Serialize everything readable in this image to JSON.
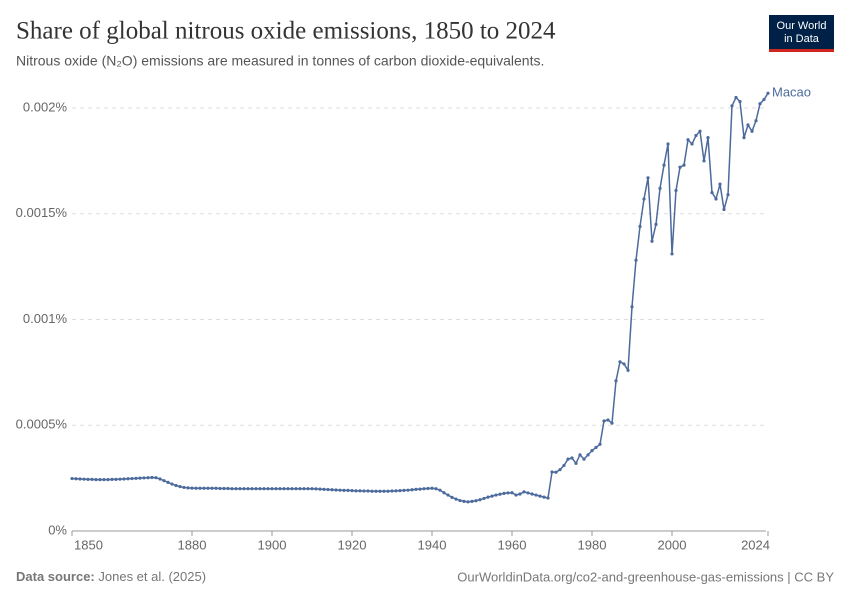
{
  "chart_data": {
    "type": "line",
    "title": "Share of global nitrous oxide emissions, 1850 to 2024",
    "subtitle": "Nitrous oxide (N₂O) emissions are measured in tonnes of carbon dioxide-equivalents.",
    "source_label": "Data source:",
    "source": "Jones et al. (2025)",
    "footer_right": "OurWorldinData.org/co2-and-greenhouse-gas-emissions | CC BY",
    "logo": [
      "Our World",
      "in Data"
    ],
    "x": [
      1850,
      1851,
      1852,
      1853,
      1854,
      1855,
      1856,
      1857,
      1858,
      1859,
      1860,
      1861,
      1862,
      1863,
      1864,
      1865,
      1866,
      1867,
      1868,
      1869,
      1870,
      1871,
      1872,
      1873,
      1874,
      1875,
      1876,
      1877,
      1878,
      1879,
      1880,
      1881,
      1882,
      1883,
      1884,
      1885,
      1886,
      1887,
      1888,
      1889,
      1890,
      1891,
      1892,
      1893,
      1894,
      1895,
      1896,
      1897,
      1898,
      1899,
      1900,
      1901,
      1902,
      1903,
      1904,
      1905,
      1906,
      1907,
      1908,
      1909,
      1910,
      1911,
      1912,
      1913,
      1914,
      1915,
      1916,
      1917,
      1918,
      1919,
      1920,
      1921,
      1922,
      1923,
      1924,
      1925,
      1926,
      1927,
      1928,
      1929,
      1930,
      1931,
      1932,
      1933,
      1934,
      1935,
      1936,
      1937,
      1938,
      1939,
      1940,
      1941,
      1942,
      1943,
      1944,
      1945,
      1946,
      1947,
      1948,
      1949,
      1950,
      1951,
      1952,
      1953,
      1954,
      1955,
      1956,
      1957,
      1958,
      1959,
      1960,
      1961,
      1962,
      1963,
      1964,
      1965,
      1966,
      1967,
      1968,
      1969,
      1970,
      1971,
      1972,
      1973,
      1974,
      1975,
      1976,
      1977,
      1978,
      1979,
      1980,
      1981,
      1982,
      1983,
      1984,
      1985,
      1986,
      1987,
      1988,
      1989,
      1990,
      1991,
      1992,
      1993,
      1994,
      1995,
      1996,
      1997,
      1998,
      1999,
      2000,
      2001,
      2002,
      2003,
      2004,
      2005,
      2006,
      2007,
      2008,
      2009,
      2010,
      2011,
      2012,
      2013,
      2014,
      2015,
      2016,
      2017,
      2018,
      2019,
      2020,
      2021,
      2022,
      2023,
      2024
    ],
    "series": [
      {
        "name": "Macao",
        "color": "#4c6a9c",
        "values": [
          0.000248,
          0.000247,
          0.000246,
          0.000245,
          0.000244,
          0.000244,
          0.000243,
          0.000243,
          0.000243,
          0.000243,
          0.000244,
          0.000244,
          0.000245,
          0.000246,
          0.000247,
          0.000248,
          0.000249,
          0.00025,
          0.000251,
          0.000252,
          0.000253,
          0.000252,
          0.000246,
          0.000238,
          0.00023,
          0.000222,
          0.000215,
          0.00021,
          0.000206,
          0.000204,
          0.000203,
          0.000202,
          0.000202,
          0.000202,
          0.000202,
          0.000202,
          0.000202,
          0.000201,
          0.000201,
          0.000201,
          0.0002,
          0.0002,
          0.0002,
          0.0002,
          0.0002,
          0.0002,
          0.0002,
          0.0002,
          0.0002,
          0.0002,
          0.0002,
          0.0002,
          0.0002,
          0.0002,
          0.0002,
          0.0002,
          0.0002,
          0.0002,
          0.0002,
          0.0002,
          0.0002,
          0.000199,
          0.000198,
          0.000197,
          0.000196,
          0.000195,
          0.000194,
          0.000193,
          0.000192,
          0.000192,
          0.000191,
          0.00019,
          0.00019,
          0.000189,
          0.000189,
          0.000188,
          0.000188,
          0.000188,
          0.000188,
          0.000188,
          0.000189,
          0.00019,
          0.000191,
          0.000192,
          0.000193,
          0.000195,
          0.000197,
          0.000198,
          0.0002,
          0.000201,
          0.000202,
          0.0002,
          0.000193,
          0.000181,
          0.00017,
          0.000159,
          0.000151,
          0.000144,
          0.00014,
          0.000138,
          0.00014,
          0.000143,
          0.000148,
          0.000154,
          0.00016,
          0.000165,
          0.00017,
          0.000174,
          0.000178,
          0.00018,
          0.000181,
          0.00017,
          0.000175,
          0.000185,
          0.00018,
          0.000175,
          0.00017,
          0.000165,
          0.00016,
          0.000156,
          0.000279,
          0.000278,
          0.00029,
          0.00031,
          0.00034,
          0.000345,
          0.00032,
          0.00036,
          0.00034,
          0.00036,
          0.00038,
          0.000395,
          0.00041,
          0.00052,
          0.000525,
          0.00051,
          0.00071,
          0.0008,
          0.00079,
          0.00076,
          0.00106,
          0.00128,
          0.00144,
          0.00157,
          0.00167,
          0.00137,
          0.00145,
          0.00162,
          0.00173,
          0.00183,
          0.00131,
          0.00161,
          0.00172,
          0.00173,
          0.00185,
          0.00183,
          0.00187,
          0.00189,
          0.00175,
          0.00186,
          0.0016,
          0.00157,
          0.00164,
          0.00152,
          0.00159,
          0.00201,
          0.00205,
          0.00203,
          0.00186,
          0.00192,
          0.00189,
          0.00194,
          0.00202,
          0.00204,
          0.00207
        ]
      }
    ],
    "xlim": [
      1850,
      2024
    ],
    "xticks": [
      1850,
      1880,
      1900,
      1920,
      1940,
      1960,
      1980,
      2000,
      2024
    ],
    "ylim": [
      0,
      0.002
    ],
    "yticks": [
      {
        "value": 0,
        "label": "0%"
      },
      {
        "value": 0.0005,
        "label": "0.0005%"
      },
      {
        "value": 0.001,
        "label": "0.001%"
      },
      {
        "value": 0.0015,
        "label": "0.0015%"
      },
      {
        "value": 0.002,
        "label": "0.002%"
      }
    ],
    "grid": true
  }
}
